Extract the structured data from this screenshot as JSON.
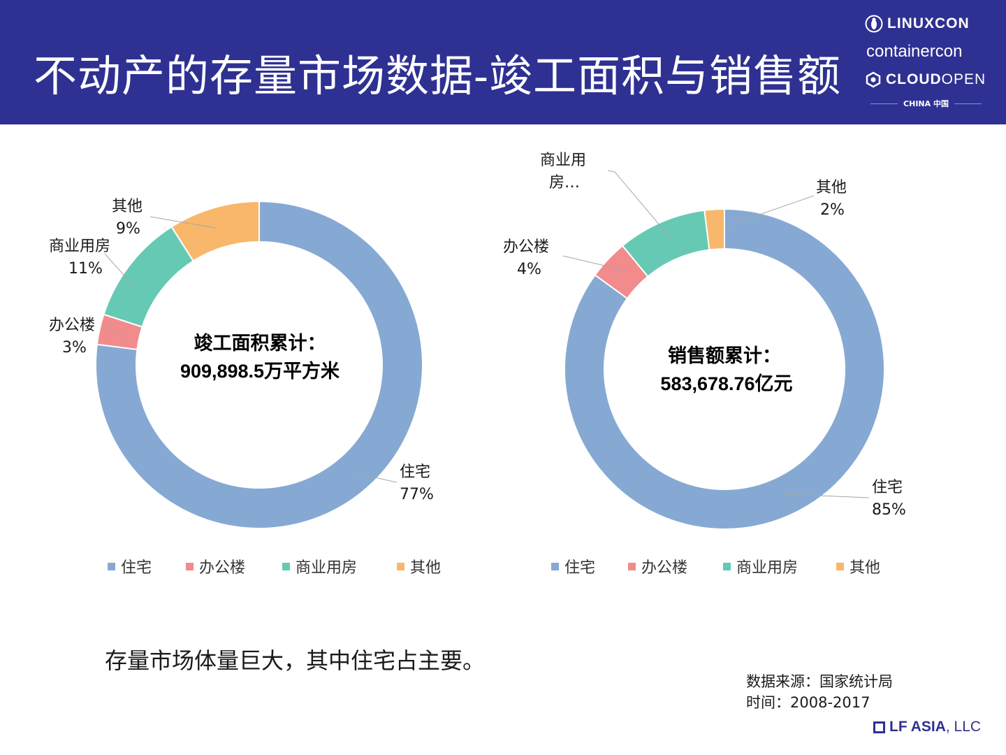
{
  "header": {
    "title": "不动产的存量市场数据-竣工面积与销售额",
    "brand": {
      "linuxcon": "LINUXCON",
      "containercon": "containercon",
      "cloud_bold": "CLOUD",
      "cloud_light": "OPEN",
      "china": "CHINA 中国"
    }
  },
  "colors": {
    "header_bg": "#2e3192",
    "residential": "#86a9d3",
    "office": "#f28b8b",
    "commercial": "#66c9b4",
    "other": "#f8b76a"
  },
  "chart_data": [
    {
      "type": "pie",
      "title": "竣工面积累计：",
      "total": "909,898.5万平方米",
      "categories": [
        "住宅",
        "办公楼",
        "商业用房",
        "其他"
      ],
      "values": [
        77,
        3,
        11,
        9
      ],
      "value_labels": [
        "77%",
        "3%",
        "11%",
        "9%"
      ],
      "legend": [
        "住宅",
        "办公楼",
        "商业用房",
        "其他"
      ],
      "legend_position": "bottom"
    },
    {
      "type": "pie",
      "title": "销售额累计：",
      "total": "583,678.76亿元",
      "categories": [
        "住宅",
        "办公楼",
        "商业用房",
        "其他"
      ],
      "values": [
        85,
        4,
        9,
        2
      ],
      "display_names": [
        "住宅",
        "办公楼",
        "商业用房…",
        "其他"
      ],
      "value_labels": [
        "85%",
        "4%",
        "",
        "2%"
      ],
      "legend": [
        "住宅",
        "办公楼",
        "商业用房",
        "其他"
      ],
      "legend_position": "bottom"
    }
  ],
  "summary": "存量市场体量巨大，其中住宅占主要。",
  "source": {
    "line1": "数据来源：国家统计局",
    "line2": "时间：2008-2017"
  },
  "footer": {
    "logo_bold": "LF ASIA",
    "logo_light": ", LLC"
  }
}
